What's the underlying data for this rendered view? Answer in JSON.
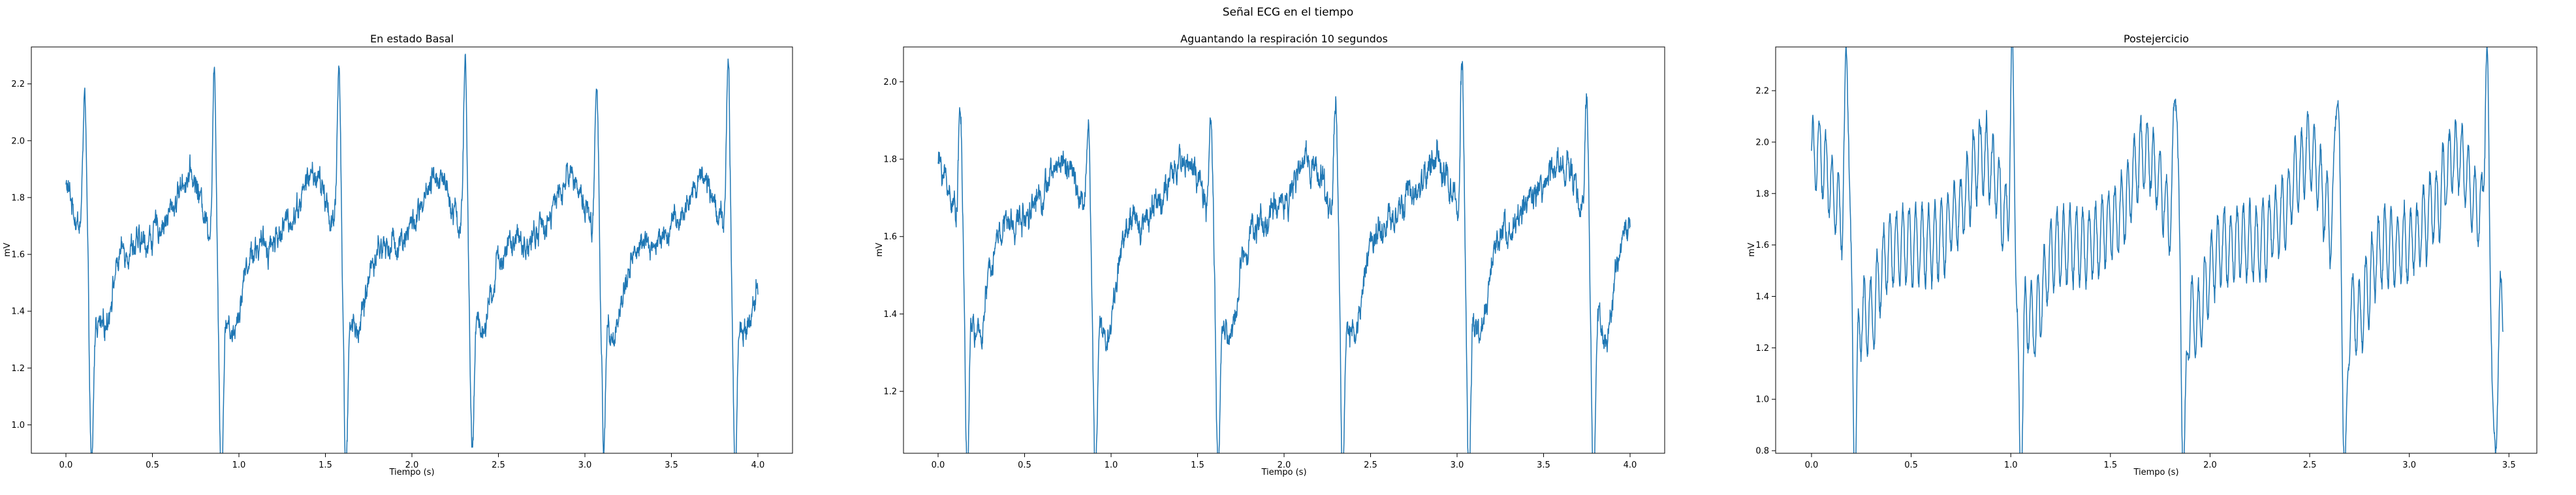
{
  "figure": {
    "title": "Señal ECG en el tiempo"
  },
  "chart_data": [
    {
      "type": "line",
      "title": "En estado Basal",
      "xlabel": "Tiempo (s)",
      "ylabel": "mV",
      "xlim": [
        -0.2,
        4.2
      ],
      "ylim": [
        0.9,
        2.33
      ],
      "xticks": [
        "0.0",
        "0.5",
        "1.0",
        "1.5",
        "2.0",
        "2.5",
        "3.0",
        "3.5",
        "4.0"
      ],
      "yticks": [
        "1.0",
        "1.2",
        "1.4",
        "1.6",
        "1.8",
        "2.0",
        "2.2"
      ],
      "grid": false,
      "series": [
        {
          "color": "#1f77b4",
          "duration": 4.0,
          "beat_times": [
            0.12,
            0.87,
            1.59,
            2.32,
            3.08,
            3.84
          ],
          "peaks": [
            2.17,
            2.23,
            2.28,
            2.27,
            2.21,
            2.3
          ],
          "troughs": [
            0.96,
            0.94,
            0.97,
            1.04,
            1.05,
            1.0
          ],
          "baseline": 1.63,
          "t_wave": 1.88,
          "noise": 0.05,
          "tremor": 0.0
        }
      ]
    },
    {
      "type": "line",
      "title": "Aguantando la respiración 10 segundos",
      "xlabel": "Tiempo (s)",
      "ylabel": "mV",
      "xlim": [
        -0.2,
        4.2
      ],
      "ylim": [
        1.04,
        2.09
      ],
      "xticks": [
        "0.0",
        "0.5",
        "1.0",
        "1.5",
        "2.0",
        "2.5",
        "3.0",
        "3.5",
        "4.0"
      ],
      "yticks": [
        "1.2",
        "1.4",
        "1.6",
        "1.8",
        "2.0"
      ],
      "grid": false,
      "series": [
        {
          "color": "#1f77b4",
          "duration": 4.0,
          "beat_times": [
            0.14,
            0.88,
            1.59,
            2.31,
            3.04,
            3.76
          ],
          "peaks": [
            1.94,
            1.89,
            1.92,
            1.98,
            2.07,
            1.99
          ],
          "troughs": [
            1.12,
            1.08,
            1.12,
            1.12,
            1.09,
            1.11
          ],
          "baseline": 1.63,
          "t_wave": 1.8,
          "noise": 0.04,
          "tremor": 0.0
        }
      ]
    },
    {
      "type": "line",
      "title": "Postejercicio",
      "xlabel": "Tiempo (s)",
      "ylabel": "mV",
      "xlim": [
        -0.18,
        3.64
      ],
      "ylim": [
        0.79,
        2.37
      ],
      "xticks": [
        "0.0",
        "0.5",
        "1.0",
        "1.5",
        "2.0",
        "2.5",
        "3.0",
        "3.5"
      ],
      "yticks": [
        "0.8",
        "1.0",
        "1.2",
        "1.4",
        "1.6",
        "1.8",
        "2.0",
        "2.2"
      ],
      "grid": false,
      "series": [
        {
          "color": "#1f77b4",
          "duration": 3.47,
          "beat_times": [
            0.19,
            1.02,
            1.84,
            2.65,
            3.4
          ],
          "peaks": [
            2.31,
            2.27,
            2.29,
            2.28,
            2.27
          ],
          "troughs": [
            0.92,
            0.88,
            0.87,
            0.86,
            0.83
          ],
          "baseline": 1.6,
          "t_wave": 1.95,
          "noise": 0.03,
          "tremor": 0.14
        }
      ]
    }
  ]
}
